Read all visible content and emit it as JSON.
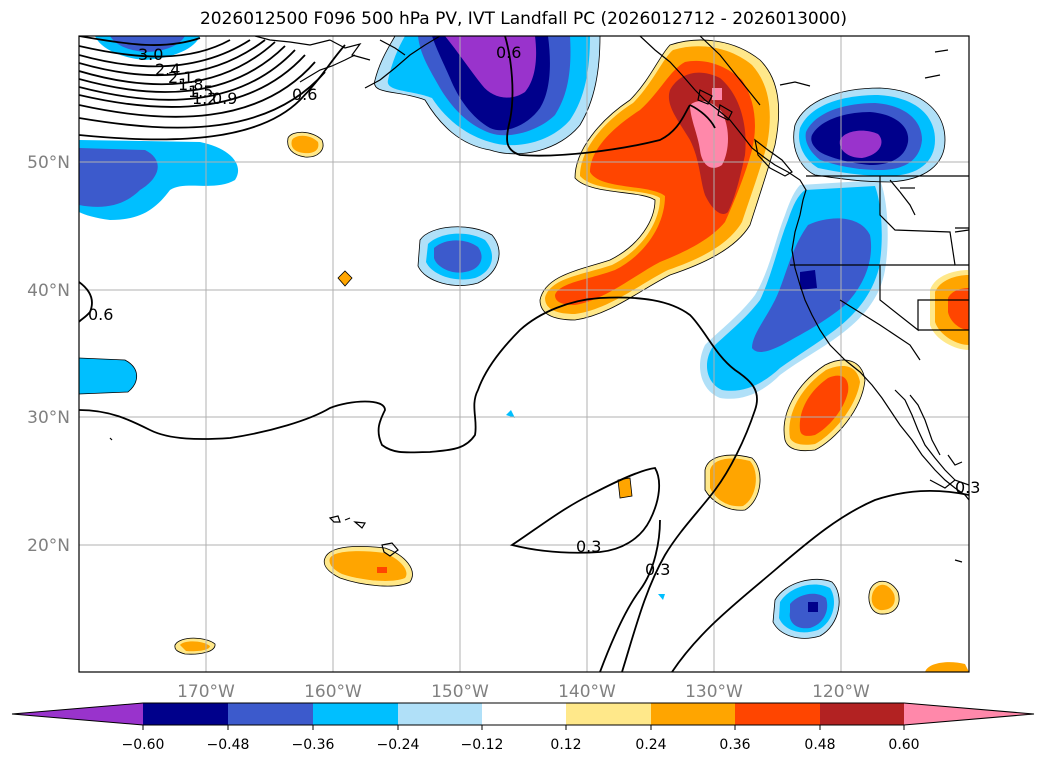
{
  "title": "2026012500 F096 500 hPa PV, IVT Landfall PC (2026012712 - 2026013000)",
  "lon_ticks": [
    "170°W",
    "160°W",
    "150°W",
    "140°W",
    "130°W",
    "120°W"
  ],
  "lat_ticks": [
    "50°N",
    "40°N",
    "30°N",
    "20°N"
  ],
  "contour_labels": [
    "3.0",
    "2.4",
    "2.1",
    "1.8",
    "1.5",
    "1.2",
    "0.9",
    "0.6",
    "0.6",
    "0.6",
    "0.3",
    "0.3",
    "0.3"
  ],
  "colorbar": {
    "ticks": [
      "−0.60",
      "−0.48",
      "−0.36",
      "−0.24",
      "−0.12",
      "0.12",
      "0.24",
      "0.36",
      "0.48",
      "0.60"
    ],
    "colors": [
      "#9933cc",
      "#00008b",
      "#3c5acc",
      "#00bfff",
      "#b0e0f8",
      "#ffffff",
      "#ffe88a",
      "#ffa500",
      "#ff4500",
      "#b22222",
      "#ff88aa",
      "#ff88aa"
    ]
  }
}
